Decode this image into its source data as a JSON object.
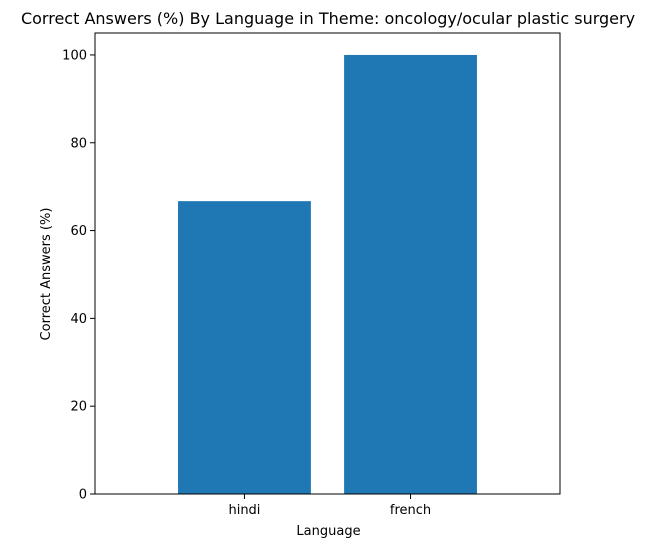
{
  "colors": {
    "bar": "#1f77b4",
    "axes": "#000000",
    "background": "#ffffff"
  },
  "chart_data": {
    "type": "bar",
    "title": "Correct Answers (%) By Language in Theme: oncology/ocular plastic surgery",
    "xlabel": "Language",
    "ylabel": "Correct Answers (%)",
    "categories": [
      "hindi",
      "french"
    ],
    "values": [
      66.7,
      100
    ],
    "ylim": [
      0,
      105
    ],
    "yticks": [
      0,
      20,
      40,
      60,
      80,
      100
    ],
    "grid": false,
    "legend": false
  }
}
